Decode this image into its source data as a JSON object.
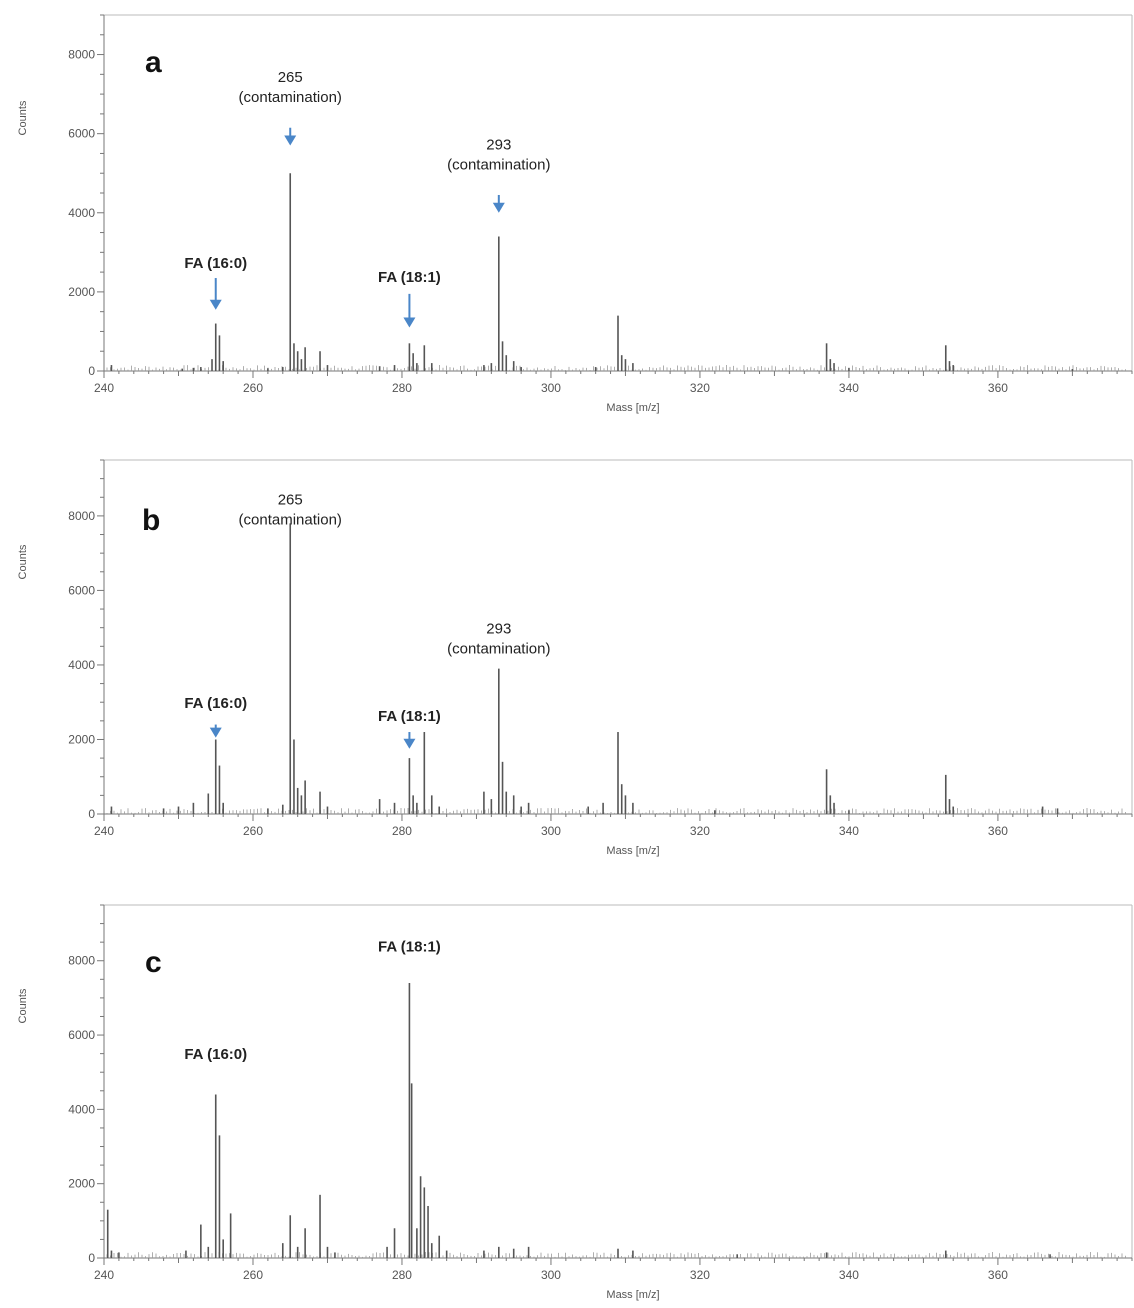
{
  "colors": {
    "spectrum": "#555555",
    "arrow": "#4a86c8",
    "axis": "#777777",
    "frame": "#bbbbbb"
  },
  "chart_data": [
    {
      "type": "bar",
      "panel": "a",
      "xlabel": "Mass [m/z]",
      "ylabel": "Counts",
      "xlim": [
        240,
        378
      ],
      "ylim": [
        0,
        9000
      ],
      "xticks": [
        240,
        260,
        280,
        300,
        320,
        340,
        360
      ],
      "yticks": [
        0,
        2000,
        4000,
        6000,
        8000
      ],
      "peaks": [
        {
          "x": 241,
          "y": 150
        },
        {
          "x": 250.5,
          "y": 60
        },
        {
          "x": 252,
          "y": 80
        },
        {
          "x": 253,
          "y": 100
        },
        {
          "x": 254.5,
          "y": 300
        },
        {
          "x": 255,
          "y": 1200
        },
        {
          "x": 255.5,
          "y": 900
        },
        {
          "x": 256,
          "y": 250
        },
        {
          "x": 262,
          "y": 70
        },
        {
          "x": 264,
          "y": 100
        },
        {
          "x": 265,
          "y": 5000
        },
        {
          "x": 265.5,
          "y": 700
        },
        {
          "x": 266,
          "y": 500
        },
        {
          "x": 266.5,
          "y": 300
        },
        {
          "x": 267,
          "y": 600
        },
        {
          "x": 269,
          "y": 500
        },
        {
          "x": 270,
          "y": 150
        },
        {
          "x": 277,
          "y": 120
        },
        {
          "x": 279,
          "y": 150
        },
        {
          "x": 281,
          "y": 700
        },
        {
          "x": 281.5,
          "y": 450
        },
        {
          "x": 282,
          "y": 200
        },
        {
          "x": 283,
          "y": 650
        },
        {
          "x": 284,
          "y": 200
        },
        {
          "x": 291,
          "y": 150
        },
        {
          "x": 292,
          "y": 200
        },
        {
          "x": 293,
          "y": 3400
        },
        {
          "x": 293.5,
          "y": 750
        },
        {
          "x": 294,
          "y": 400
        },
        {
          "x": 295,
          "y": 250
        },
        {
          "x": 296,
          "y": 100
        },
        {
          "x": 306,
          "y": 100
        },
        {
          "x": 309,
          "y": 1400
        },
        {
          "x": 309.5,
          "y": 400
        },
        {
          "x": 310,
          "y": 300
        },
        {
          "x": 311,
          "y": 200
        },
        {
          "x": 337,
          "y": 700
        },
        {
          "x": 337.5,
          "y": 300
        },
        {
          "x": 338,
          "y": 200
        },
        {
          "x": 340,
          "y": 80
        },
        {
          "x": 353,
          "y": 650
        },
        {
          "x": 353.5,
          "y": 250
        },
        {
          "x": 354,
          "y": 150
        },
        {
          "x": 370,
          "y": 50
        }
      ],
      "annotations": [
        {
          "x": 255,
          "lines": [
            "FA (16:0)"
          ],
          "bold": true,
          "arrow": true,
          "label_y": 2600,
          "arrow_top": 2350,
          "arrow_tip": 1550
        },
        {
          "x": 265,
          "lines": [
            "265",
            "(contamination)"
          ],
          "bold": false,
          "arrow": true,
          "label_y": 7300,
          "arrow_top": 6150,
          "arrow_tip": 5700
        },
        {
          "x": 281,
          "lines": [
            "FA (18:1)"
          ],
          "bold": true,
          "arrow": true,
          "label_y": 2250,
          "arrow_top": 1950,
          "arrow_tip": 1100
        },
        {
          "x": 293,
          "lines": [
            "293",
            "(contamination)"
          ],
          "bold": false,
          "arrow": true,
          "label_y": 5600,
          "arrow_top": 4450,
          "arrow_tip": 4000
        }
      ]
    },
    {
      "type": "bar",
      "panel": "b",
      "xlabel": "Mass [m/z]",
      "ylabel": "Counts",
      "xlim": [
        240,
        378
      ],
      "ylim": [
        0,
        9500
      ],
      "xticks": [
        240,
        260,
        280,
        300,
        320,
        340,
        360
      ],
      "yticks": [
        0,
        2000,
        4000,
        6000,
        8000
      ],
      "peaks": [
        {
          "x": 241,
          "y": 200
        },
        {
          "x": 248,
          "y": 150
        },
        {
          "x": 250,
          "y": 200
        },
        {
          "x": 252,
          "y": 300
        },
        {
          "x": 254,
          "y": 550
        },
        {
          "x": 255,
          "y": 2000
        },
        {
          "x": 255.5,
          "y": 1300
        },
        {
          "x": 256,
          "y": 300
        },
        {
          "x": 262,
          "y": 150
        },
        {
          "x": 264,
          "y": 250
        },
        {
          "x": 265,
          "y": 7800
        },
        {
          "x": 265.5,
          "y": 2000
        },
        {
          "x": 266,
          "y": 700
        },
        {
          "x": 266.5,
          "y": 500
        },
        {
          "x": 267,
          "y": 900
        },
        {
          "x": 269,
          "y": 600
        },
        {
          "x": 270,
          "y": 200
        },
        {
          "x": 277,
          "y": 400
        },
        {
          "x": 279,
          "y": 300
        },
        {
          "x": 281,
          "y": 1500
        },
        {
          "x": 281.5,
          "y": 500
        },
        {
          "x": 282,
          "y": 300
        },
        {
          "x": 283,
          "y": 2200
        },
        {
          "x": 284,
          "y": 500
        },
        {
          "x": 285,
          "y": 200
        },
        {
          "x": 291,
          "y": 600
        },
        {
          "x": 292,
          "y": 400
        },
        {
          "x": 293,
          "y": 3900
        },
        {
          "x": 293.5,
          "y": 1400
        },
        {
          "x": 294,
          "y": 600
        },
        {
          "x": 295,
          "y": 500
        },
        {
          "x": 296,
          "y": 200
        },
        {
          "x": 297,
          "y": 300
        },
        {
          "x": 305,
          "y": 200
        },
        {
          "x": 307,
          "y": 300
        },
        {
          "x": 309,
          "y": 2200
        },
        {
          "x": 309.5,
          "y": 800
        },
        {
          "x": 310,
          "y": 500
        },
        {
          "x": 311,
          "y": 300
        },
        {
          "x": 322,
          "y": 100
        },
        {
          "x": 337,
          "y": 1200
        },
        {
          "x": 337.5,
          "y": 500
        },
        {
          "x": 338,
          "y": 300
        },
        {
          "x": 340,
          "y": 100
        },
        {
          "x": 353,
          "y": 1050
        },
        {
          "x": 353.5,
          "y": 400
        },
        {
          "x": 354,
          "y": 200
        },
        {
          "x": 366,
          "y": 200
        },
        {
          "x": 368,
          "y": 150
        }
      ],
      "annotations": [
        {
          "x": 255,
          "lines": [
            "FA (16:0)"
          ],
          "bold": true,
          "arrow": true,
          "label_y": 2850,
          "arrow_top": 2400,
          "arrow_tip": 2050
        },
        {
          "x": 265,
          "lines": [
            "265",
            "(contamination)"
          ],
          "bold": false,
          "arrow": false,
          "label_y": 8300
        },
        {
          "x": 281,
          "lines": [
            "FA (18:1)"
          ],
          "bold": true,
          "arrow": true,
          "label_y": 2500,
          "arrow_top": 2200,
          "arrow_tip": 1750
        },
        {
          "x": 293,
          "lines": [
            "293",
            "(contamination)"
          ],
          "bold": false,
          "arrow": false,
          "label_y": 4850
        }
      ]
    },
    {
      "type": "bar",
      "panel": "c",
      "xlabel": "Mass [m/z]",
      "ylabel": "Counts",
      "xlim": [
        240,
        378
      ],
      "ylim": [
        0,
        9500
      ],
      "xticks": [
        240,
        260,
        280,
        300,
        320,
        340,
        360
      ],
      "yticks": [
        0,
        2000,
        4000,
        6000,
        8000
      ],
      "peaks": [
        {
          "x": 240.5,
          "y": 1300
        },
        {
          "x": 241,
          "y": 200
        },
        {
          "x": 242,
          "y": 150
        },
        {
          "x": 251,
          "y": 200
        },
        {
          "x": 253,
          "y": 900
        },
        {
          "x": 254,
          "y": 300
        },
        {
          "x": 255,
          "y": 4400
        },
        {
          "x": 255.5,
          "y": 3300
        },
        {
          "x": 256,
          "y": 500
        },
        {
          "x": 257,
          "y": 1200
        },
        {
          "x": 264,
          "y": 400
        },
        {
          "x": 265,
          "y": 1150
        },
        {
          "x": 266,
          "y": 300
        },
        {
          "x": 267,
          "y": 800
        },
        {
          "x": 269,
          "y": 1700
        },
        {
          "x": 270,
          "y": 300
        },
        {
          "x": 271,
          "y": 150
        },
        {
          "x": 278,
          "y": 300
        },
        {
          "x": 279,
          "y": 800
        },
        {
          "x": 281,
          "y": 7400
        },
        {
          "x": 281.3,
          "y": 4700
        },
        {
          "x": 282,
          "y": 800
        },
        {
          "x": 282.5,
          "y": 2200
        },
        {
          "x": 283,
          "y": 1900
        },
        {
          "x": 283.5,
          "y": 1400
        },
        {
          "x": 284,
          "y": 400
        },
        {
          "x": 285,
          "y": 600
        },
        {
          "x": 286,
          "y": 200
        },
        {
          "x": 291,
          "y": 200
        },
        {
          "x": 293,
          "y": 300
        },
        {
          "x": 295,
          "y": 250
        },
        {
          "x": 297,
          "y": 300
        },
        {
          "x": 309,
          "y": 250
        },
        {
          "x": 311,
          "y": 200
        },
        {
          "x": 325,
          "y": 100
        },
        {
          "x": 337,
          "y": 150
        },
        {
          "x": 353,
          "y": 200
        },
        {
          "x": 367,
          "y": 100
        }
      ],
      "annotations": [
        {
          "x": 255,
          "lines": [
            "FA (16:0)"
          ],
          "bold": true,
          "arrow": false,
          "label_y": 5350
        },
        {
          "x": 281,
          "lines": [
            "FA (18:1)"
          ],
          "bold": true,
          "arrow": false,
          "label_y": 8250
        }
      ]
    }
  ]
}
